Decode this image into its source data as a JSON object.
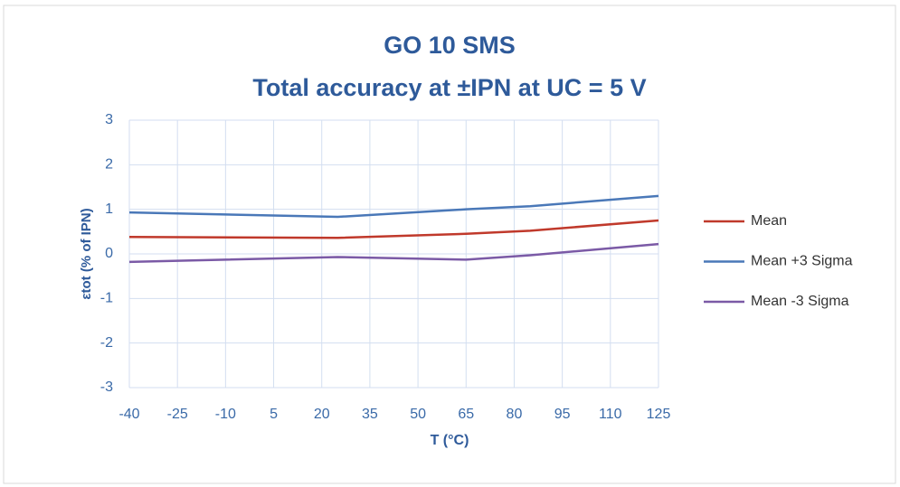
{
  "chart_data": {
    "type": "line",
    "title": "GO 10 SMS",
    "subtitle": "Total accuracy at ±IPN at UC = 5 V",
    "x_label": "T (°C)",
    "y_label": "εtot (% of IPN)",
    "x": [
      -40,
      25,
      65,
      85,
      125
    ],
    "series": [
      {
        "name": "Mean",
        "color": "#c0392b",
        "values": [
          0.38,
          0.36,
          0.45,
          0.52,
          0.75
        ]
      },
      {
        "name": "Mean +3 Sigma",
        "color": "#4a78b8",
        "values": [
          0.93,
          0.83,
          1.0,
          1.07,
          1.3
        ]
      },
      {
        "name": "Mean -3 Sigma",
        "color": "#7b5aa6",
        "values": [
          -0.18,
          -0.07,
          -0.13,
          -0.03,
          0.22
        ]
      }
    ],
    "xlim": [
      -40,
      125
    ],
    "xticks": [
      -40,
      -25,
      -10,
      5,
      20,
      35,
      50,
      65,
      80,
      95,
      110,
      125
    ],
    "ylim": [
      -3,
      3
    ],
    "yticks": [
      -3,
      -2,
      -1,
      0,
      1,
      2,
      3
    ],
    "grid": true,
    "legend": "right"
  }
}
